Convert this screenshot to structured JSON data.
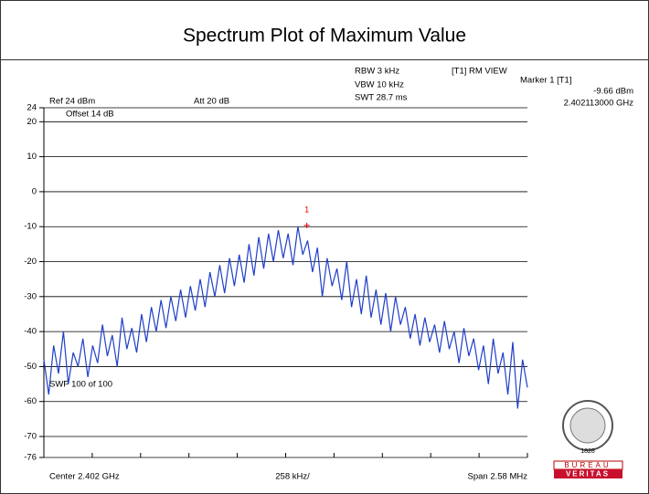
{
  "chart_data": {
    "type": "line",
    "title": "Spectrum Plot of Maximum Value",
    "ref_level": "Ref 24 dBm",
    "attenuation": "Att 20 dB",
    "rbw": "RBW 3 kHz",
    "vbw": "VBW 10 kHz",
    "swt": "SWT 28.7 ms",
    "trace_mode": "[T1] RM VIEW",
    "offset": "Offset 14 dB",
    "sweep": "SWP 100 of 100",
    "x_start_label": "Center 2.402 GHz",
    "x_div_label": "258 kHz/",
    "x_end_label": "Span 2.58 MHz",
    "marker": {
      "name": "Marker 1 [T1]",
      "label": "1",
      "value": -9.66,
      "value_label": "-9.66 dBm",
      "x": 2.402113,
      "x_label": "2.402113000 GHz"
    },
    "logo": {
      "top": "BUREAU",
      "bottom": "VERITAS",
      "year": "1828"
    },
    "xlim": [
      2.40071,
      2.40329
    ],
    "ylim": [
      -76,
      24
    ],
    "yticks": [
      24,
      20,
      10,
      0,
      -10,
      -20,
      -30,
      -40,
      -50,
      -60,
      -70,
      -76
    ],
    "grid": true,
    "series": [
      {
        "name": "T1",
        "color": "#1f3fc8",
        "values": [
          -48,
          -58,
          -44,
          -52,
          -40,
          -55,
          -46,
          -50,
          -42,
          -53,
          -44,
          -49,
          -38,
          -47,
          -41,
          -50,
          -36,
          -45,
          -39,
          -46,
          -35,
          -43,
          -33,
          -40,
          -31,
          -39,
          -30,
          -37,
          -28,
          -36,
          -27,
          -34,
          -25,
          -33,
          -23,
          -30,
          -21,
          -29,
          -19,
          -27,
          -18,
          -26,
          -15,
          -24,
          -13,
          -22,
          -12,
          -20,
          -11,
          -19,
          -12,
          -21,
          -10,
          -18,
          -14,
          -23,
          -16,
          -30,
          -19,
          -27,
          -22,
          -31,
          -20,
          -33,
          -25,
          -35,
          -24,
          -36,
          -28,
          -38,
          -29,
          -40,
          -30,
          -38,
          -33,
          -42,
          -35,
          -44,
          -36,
          -43,
          -38,
          -46,
          -37,
          -45,
          -40,
          -49,
          -39,
          -47,
          -42,
          -51,
          -44,
          -55,
          -42,
          -52,
          -46,
          -58,
          -43,
          -62,
          -48,
          -56
        ]
      }
    ]
  }
}
